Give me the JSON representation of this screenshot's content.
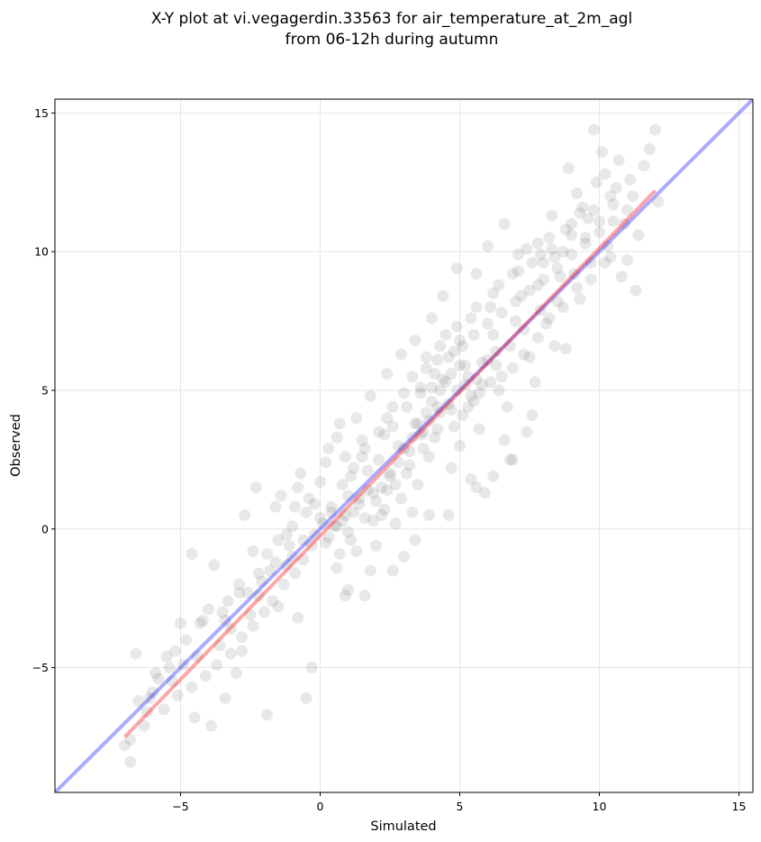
{
  "chart_data": {
    "type": "scatter",
    "title_line1": "X-Y plot at vi.vegagerdin.33563 for air_temperature_at_2m_agl",
    "title_line2": "from 06-12h during autumn",
    "xlabel": "Simulated",
    "ylabel": "Observed",
    "xlim": [
      -9.5,
      15.5
    ],
    "ylim": [
      -9.5,
      15.5
    ],
    "xticks": [
      -5,
      0,
      5,
      10,
      15
    ],
    "yticks": [
      -5,
      0,
      5,
      10,
      15
    ],
    "xtick_labels": [
      "−5",
      "0",
      "5",
      "10",
      "15"
    ],
    "ytick_labels": [
      "−5",
      "0",
      "5",
      "10",
      "15"
    ],
    "grid": true,
    "point_color": "#000000",
    "point_opacity": 0.09,
    "reference_line": {
      "color": "#0000ff",
      "opacity": 0.33,
      "x": [
        -9.5,
        15.5
      ],
      "y": [
        -9.5,
        15.5
      ]
    },
    "fit_line": {
      "color": "#ff0000",
      "opacity": 0.35,
      "x": [
        -7.0,
        12.0
      ],
      "y": [
        -7.5,
        12.2
      ]
    },
    "points": [
      [
        -7.0,
        -7.8
      ],
      [
        -6.8,
        -7.6
      ],
      [
        -6.5,
        -6.2
      ],
      [
        -6.6,
        -4.5
      ],
      [
        -6.0,
        -5.9
      ],
      [
        -6.3,
        -7.1
      ],
      [
        -5.8,
        -5.4
      ],
      [
        -5.5,
        -4.6
      ],
      [
        -5.9,
        -5.2
      ],
      [
        -6.8,
        -8.4
      ],
      [
        -6.2,
        -6.6
      ],
      [
        -5.4,
        -5.0
      ],
      [
        -5.0,
        -3.4
      ],
      [
        -4.6,
        -0.9
      ],
      [
        -4.2,
        -3.3
      ],
      [
        -4.0,
        -2.9
      ],
      [
        -3.8,
        -1.3
      ],
      [
        -4.5,
        -6.8
      ],
      [
        -3.9,
        -7.1
      ],
      [
        -3.4,
        -6.1
      ],
      [
        -3.0,
        -5.2
      ],
      [
        -2.8,
        -4.4
      ],
      [
        -3.2,
        -3.6
      ],
      [
        -2.5,
        -3.1
      ],
      [
        -2.9,
        -2.0
      ],
      [
        -2.2,
        -2.4
      ],
      [
        -1.9,
        -6.7
      ],
      [
        -2.4,
        -0.8
      ],
      [
        -1.8,
        -1.5
      ],
      [
        -1.5,
        -2.8
      ],
      [
        -1.2,
        -0.2
      ],
      [
        -1.0,
        -1.0
      ],
      [
        -0.8,
        -3.2
      ],
      [
        -0.5,
        -6.1
      ],
      [
        -0.3,
        -5.0
      ],
      [
        -0.9,
        0.8
      ],
      [
        -1.4,
        1.2
      ],
      [
        -2.7,
        0.5
      ],
      [
        -2.3,
        1.5
      ],
      [
        -0.7,
        2.0
      ],
      [
        -5.2,
        -4.4
      ],
      [
        -4.8,
        -4.0
      ],
      [
        -4.3,
        -3.4
      ],
      [
        -3.6,
        -4.2
      ],
      [
        -3.5,
        -3.0
      ],
      [
        -2.6,
        -2.3
      ],
      [
        -2.1,
        -1.9
      ],
      [
        -1.6,
        -1.2
      ],
      [
        -1.1,
        -0.6
      ],
      [
        -0.6,
        -0.4
      ],
      [
        -0.2,
        -0.2
      ],
      [
        0.1,
        0.2
      ],
      [
        0.4,
        0.8
      ],
      [
        0.2,
        -0.5
      ],
      [
        0.6,
        -1.4
      ],
      [
        0.9,
        -2.4
      ],
      [
        0.7,
        3.8
      ],
      [
        0.3,
        2.9
      ],
      [
        0.0,
        1.7
      ],
      [
        -0.4,
        1.1
      ],
      [
        0.5,
        0.1
      ],
      [
        0.8,
        0.3
      ],
      [
        1.0,
        -0.1
      ],
      [
        1.2,
        0.6
      ],
      [
        1.4,
        1.1
      ],
      [
        1.1,
        1.9
      ],
      [
        0.9,
        2.6
      ],
      [
        1.5,
        3.2
      ],
      [
        1.7,
        2.1
      ],
      [
        1.9,
        1.3
      ],
      [
        1.6,
        0.4
      ],
      [
        1.3,
        -0.8
      ],
      [
        1.8,
        -1.5
      ],
      [
        2.0,
        -0.6
      ],
      [
        2.2,
        0.5
      ],
      [
        2.4,
        1.4
      ],
      [
        2.1,
        2.5
      ],
      [
        2.3,
        3.4
      ],
      [
        2.6,
        4.4
      ],
      [
        2.8,
        3.0
      ],
      [
        2.5,
        1.9
      ],
      [
        2.9,
        1.1
      ],
      [
        3.1,
        2.0
      ],
      [
        2.7,
        0.2
      ],
      [
        3.0,
        -1.0
      ],
      [
        3.3,
        0.6
      ],
      [
        3.5,
        1.6
      ],
      [
        3.2,
        2.8
      ],
      [
        3.4,
        3.8
      ],
      [
        3.6,
        4.9
      ],
      [
        3.8,
        5.8
      ],
      [
        3.7,
        3.5
      ],
      [
        3.9,
        2.6
      ],
      [
        4.1,
        3.3
      ],
      [
        4.3,
        4.2
      ],
      [
        4.0,
        5.1
      ],
      [
        4.2,
        6.1
      ],
      [
        4.5,
        7.0
      ],
      [
        4.4,
        5.4
      ],
      [
        4.6,
        4.5
      ],
      [
        4.8,
        3.7
      ],
      [
        4.7,
        2.2
      ],
      [
        5.0,
        3.0
      ],
      [
        5.1,
        4.1
      ],
      [
        4.9,
        5.0
      ],
      [
        5.2,
        5.9
      ],
      [
        5.0,
        6.8
      ],
      [
        5.4,
        7.6
      ],
      [
        5.3,
        5.5
      ],
      [
        5.5,
        4.6
      ],
      [
        5.7,
        3.6
      ],
      [
        5.6,
        1.5
      ],
      [
        5.9,
        1.3
      ],
      [
        5.8,
        5.2
      ],
      [
        6.0,
        6.1
      ],
      [
        6.2,
        7.0
      ],
      [
        6.1,
        8.0
      ],
      [
        6.4,
        8.8
      ],
      [
        6.3,
        6.4
      ],
      [
        6.5,
        5.5
      ],
      [
        6.7,
        4.4
      ],
      [
        6.6,
        3.2
      ],
      [
        6.9,
        2.5
      ],
      [
        6.8,
        6.6
      ],
      [
        7.0,
        7.5
      ],
      [
        7.2,
        8.4
      ],
      [
        7.1,
        9.3
      ],
      [
        7.4,
        10.1
      ],
      [
        7.3,
        7.2
      ],
      [
        7.5,
        6.2
      ],
      [
        7.7,
        5.3
      ],
      [
        7.6,
        4.1
      ],
      [
        7.9,
        7.9
      ],
      [
        7.8,
        8.8
      ],
      [
        8.0,
        9.6
      ],
      [
        8.2,
        10.5
      ],
      [
        8.1,
        7.4
      ],
      [
        8.4,
        6.6
      ],
      [
        8.3,
        11.3
      ],
      [
        8.6,
        9.1
      ],
      [
        8.5,
        8.2
      ],
      [
        8.8,
        6.5
      ],
      [
        8.7,
        10.0
      ],
      [
        9.0,
        11.0
      ],
      [
        9.1,
        9.2
      ],
      [
        9.3,
        8.3
      ],
      [
        9.2,
        12.1
      ],
      [
        9.5,
        10.5
      ],
      [
        9.4,
        11.6
      ],
      [
        9.7,
        9.6
      ],
      [
        9.8,
        14.4
      ],
      [
        9.9,
        12.5
      ],
      [
        10.1,
        13.6
      ],
      [
        10.0,
        11.1
      ],
      [
        10.3,
        10.2
      ],
      [
        10.2,
        12.8
      ],
      [
        10.5,
        11.7
      ],
      [
        10.4,
        9.8
      ],
      [
        10.7,
        13.3
      ],
      [
        10.6,
        12.3
      ],
      [
        10.9,
        11.0
      ],
      [
        11.0,
        9.7
      ],
      [
        11.2,
        12.0
      ],
      [
        11.4,
        10.6
      ],
      [
        11.6,
        13.1
      ],
      [
        11.8,
        13.7
      ],
      [
        12.0,
        14.4
      ],
      [
        12.1,
        11.8
      ],
      [
        11.3,
        8.6
      ],
      [
        10.8,
        9.1
      ],
      [
        1.0,
        -2.2
      ],
      [
        1.6,
        -2.4
      ],
      [
        2.6,
        -1.5
      ],
      [
        3.4,
        -0.4
      ],
      [
        3.9,
        0.5
      ],
      [
        4.6,
        0.5
      ],
      [
        5.4,
        1.8
      ],
      [
        6.2,
        1.9
      ],
      [
        6.8,
        2.5
      ],
      [
        7.4,
        3.5
      ],
      [
        -1.6,
        0.8
      ],
      [
        -0.8,
        1.5
      ],
      [
        0.2,
        2.4
      ],
      [
        0.6,
        3.3
      ],
      [
        1.3,
        4.0
      ],
      [
        1.8,
        4.8
      ],
      [
        2.4,
        5.6
      ],
      [
        2.9,
        6.3
      ],
      [
        3.4,
        6.8
      ],
      [
        4.0,
        7.6
      ],
      [
        4.4,
        8.4
      ],
      [
        4.9,
        9.4
      ],
      [
        5.6,
        9.2
      ],
      [
        6.0,
        10.2
      ],
      [
        6.6,
        11.0
      ],
      [
        7.1,
        9.9
      ],
      [
        7.8,
        10.3
      ],
      [
        8.4,
        9.8
      ],
      [
        8.9,
        13.0
      ],
      [
        9.6,
        11.2
      ],
      [
        2.0,
        1.0
      ],
      [
        2.2,
        1.5
      ],
      [
        2.5,
        2.0
      ],
      [
        2.8,
        2.4
      ],
      [
        3.0,
        2.9
      ],
      [
        3.3,
        3.3
      ],
      [
        3.5,
        3.8
      ],
      [
        3.8,
        4.2
      ],
      [
        4.0,
        4.6
      ],
      [
        4.3,
        5.0
      ],
      [
        4.5,
        5.3
      ],
      [
        4.7,
        5.6
      ],
      [
        5.0,
        5.9
      ],
      [
        5.2,
        5.2
      ],
      [
        5.4,
        4.8
      ],
      [
        5.6,
        5.4
      ],
      [
        5.8,
        6.0
      ],
      [
        4.2,
        4.4
      ],
      [
        3.9,
        3.9
      ],
      [
        3.6,
        3.4
      ],
      [
        1.4,
        0.9
      ],
      [
        1.7,
        1.4
      ],
      [
        0.9,
        0.5
      ],
      [
        0.6,
        0.1
      ],
      [
        0.3,
        -0.3
      ],
      [
        0.0,
        0.4
      ],
      [
        -0.3,
        -0.6
      ],
      [
        -0.6,
        -1.1
      ],
      [
        -0.9,
        -1.6
      ],
      [
        -1.3,
        -2.0
      ],
      [
        -1.7,
        -2.6
      ],
      [
        -2.0,
        -3.0
      ],
      [
        -2.4,
        -3.5
      ],
      [
        -2.8,
        -3.9
      ],
      [
        -3.2,
        -4.5
      ],
      [
        -3.7,
        -4.9
      ],
      [
        -4.1,
        -5.3
      ],
      [
        -4.6,
        -5.7
      ],
      [
        -5.1,
        -6.0
      ],
      [
        -5.6,
        -6.5
      ],
      [
        -3.3,
        -2.6
      ],
      [
        -2.9,
        -2.3
      ],
      [
        -1.9,
        -0.9
      ],
      [
        -1.5,
        -0.4
      ],
      [
        -1.0,
        0.1
      ],
      [
        -0.5,
        0.6
      ],
      [
        0.8,
        1.6
      ],
      [
        1.2,
        2.2
      ],
      [
        1.5,
        2.6
      ],
      [
        2.6,
        3.7
      ],
      [
        3.1,
        4.4
      ],
      [
        3.6,
        5.1
      ],
      [
        4.1,
        5.6
      ],
      [
        4.6,
        6.2
      ],
      [
        5.1,
        6.6
      ],
      [
        5.5,
        7.0
      ],
      [
        6.0,
        7.4
      ],
      [
        6.5,
        7.8
      ],
      [
        7.0,
        8.2
      ],
      [
        7.5,
        8.6
      ],
      [
        8.0,
        9.0
      ],
      [
        8.5,
        9.4
      ],
      [
        9.0,
        9.9
      ],
      [
        9.5,
        10.3
      ],
      [
        10.0,
        10.7
      ],
      [
        10.5,
        11.1
      ],
      [
        11.0,
        11.5
      ],
      [
        6.4,
        5.0
      ],
      [
        6.9,
        5.8
      ],
      [
        7.3,
        6.3
      ],
      [
        7.8,
        6.9
      ],
      [
        8.2,
        7.6
      ],
      [
        8.7,
        8.0
      ],
      [
        9.2,
        8.7
      ],
      [
        9.7,
        9.0
      ],
      [
        10.2,
        9.6
      ],
      [
        0.7,
        -0.9
      ],
      [
        1.1,
        -0.4
      ],
      [
        1.9,
        0.3
      ],
      [
        2.3,
        0.7
      ],
      [
        2.7,
        1.6
      ],
      [
        3.2,
        2.3
      ],
      [
        3.7,
        2.9
      ],
      [
        4.2,
        3.6
      ],
      [
        4.7,
        4.3
      ],
      [
        5.3,
        4.4
      ],
      [
        5.7,
        4.9
      ],
      [
        6.1,
        5.3
      ],
      [
        6.3,
        5.9
      ],
      [
        4.8,
        6.4
      ],
      [
        1.0,
        1.2
      ],
      [
        0.4,
        0.6
      ],
      [
        -0.2,
        0.9
      ],
      [
        -1.2,
        -1.3
      ],
      [
        -2.2,
        -1.6
      ],
      [
        -3.4,
        -3.3
      ],
      [
        -4.4,
        -4.6
      ],
      [
        -5.3,
        -5.5
      ],
      [
        -6.1,
        -6.1
      ],
      [
        -4.9,
        -4.9
      ],
      [
        1.6,
        2.9
      ],
      [
        2.1,
        3.5
      ],
      [
        2.4,
        4.0
      ],
      [
        3.0,
        4.9
      ],
      [
        3.3,
        5.5
      ],
      [
        3.8,
        6.2
      ],
      [
        4.3,
        6.6
      ],
      [
        4.9,
        7.3
      ],
      [
        5.6,
        8.0
      ],
      [
        6.2,
        8.5
      ],
      [
        6.9,
        9.2
      ],
      [
        7.6,
        9.6
      ],
      [
        8.3,
        10.1
      ],
      [
        9.0,
        10.6
      ],
      [
        9.8,
        11.5
      ],
      [
        10.4,
        12.0
      ],
      [
        11.1,
        12.6
      ],
      [
        9.3,
        11.4
      ],
      [
        8.8,
        10.8
      ],
      [
        7.9,
        9.9
      ]
    ]
  }
}
